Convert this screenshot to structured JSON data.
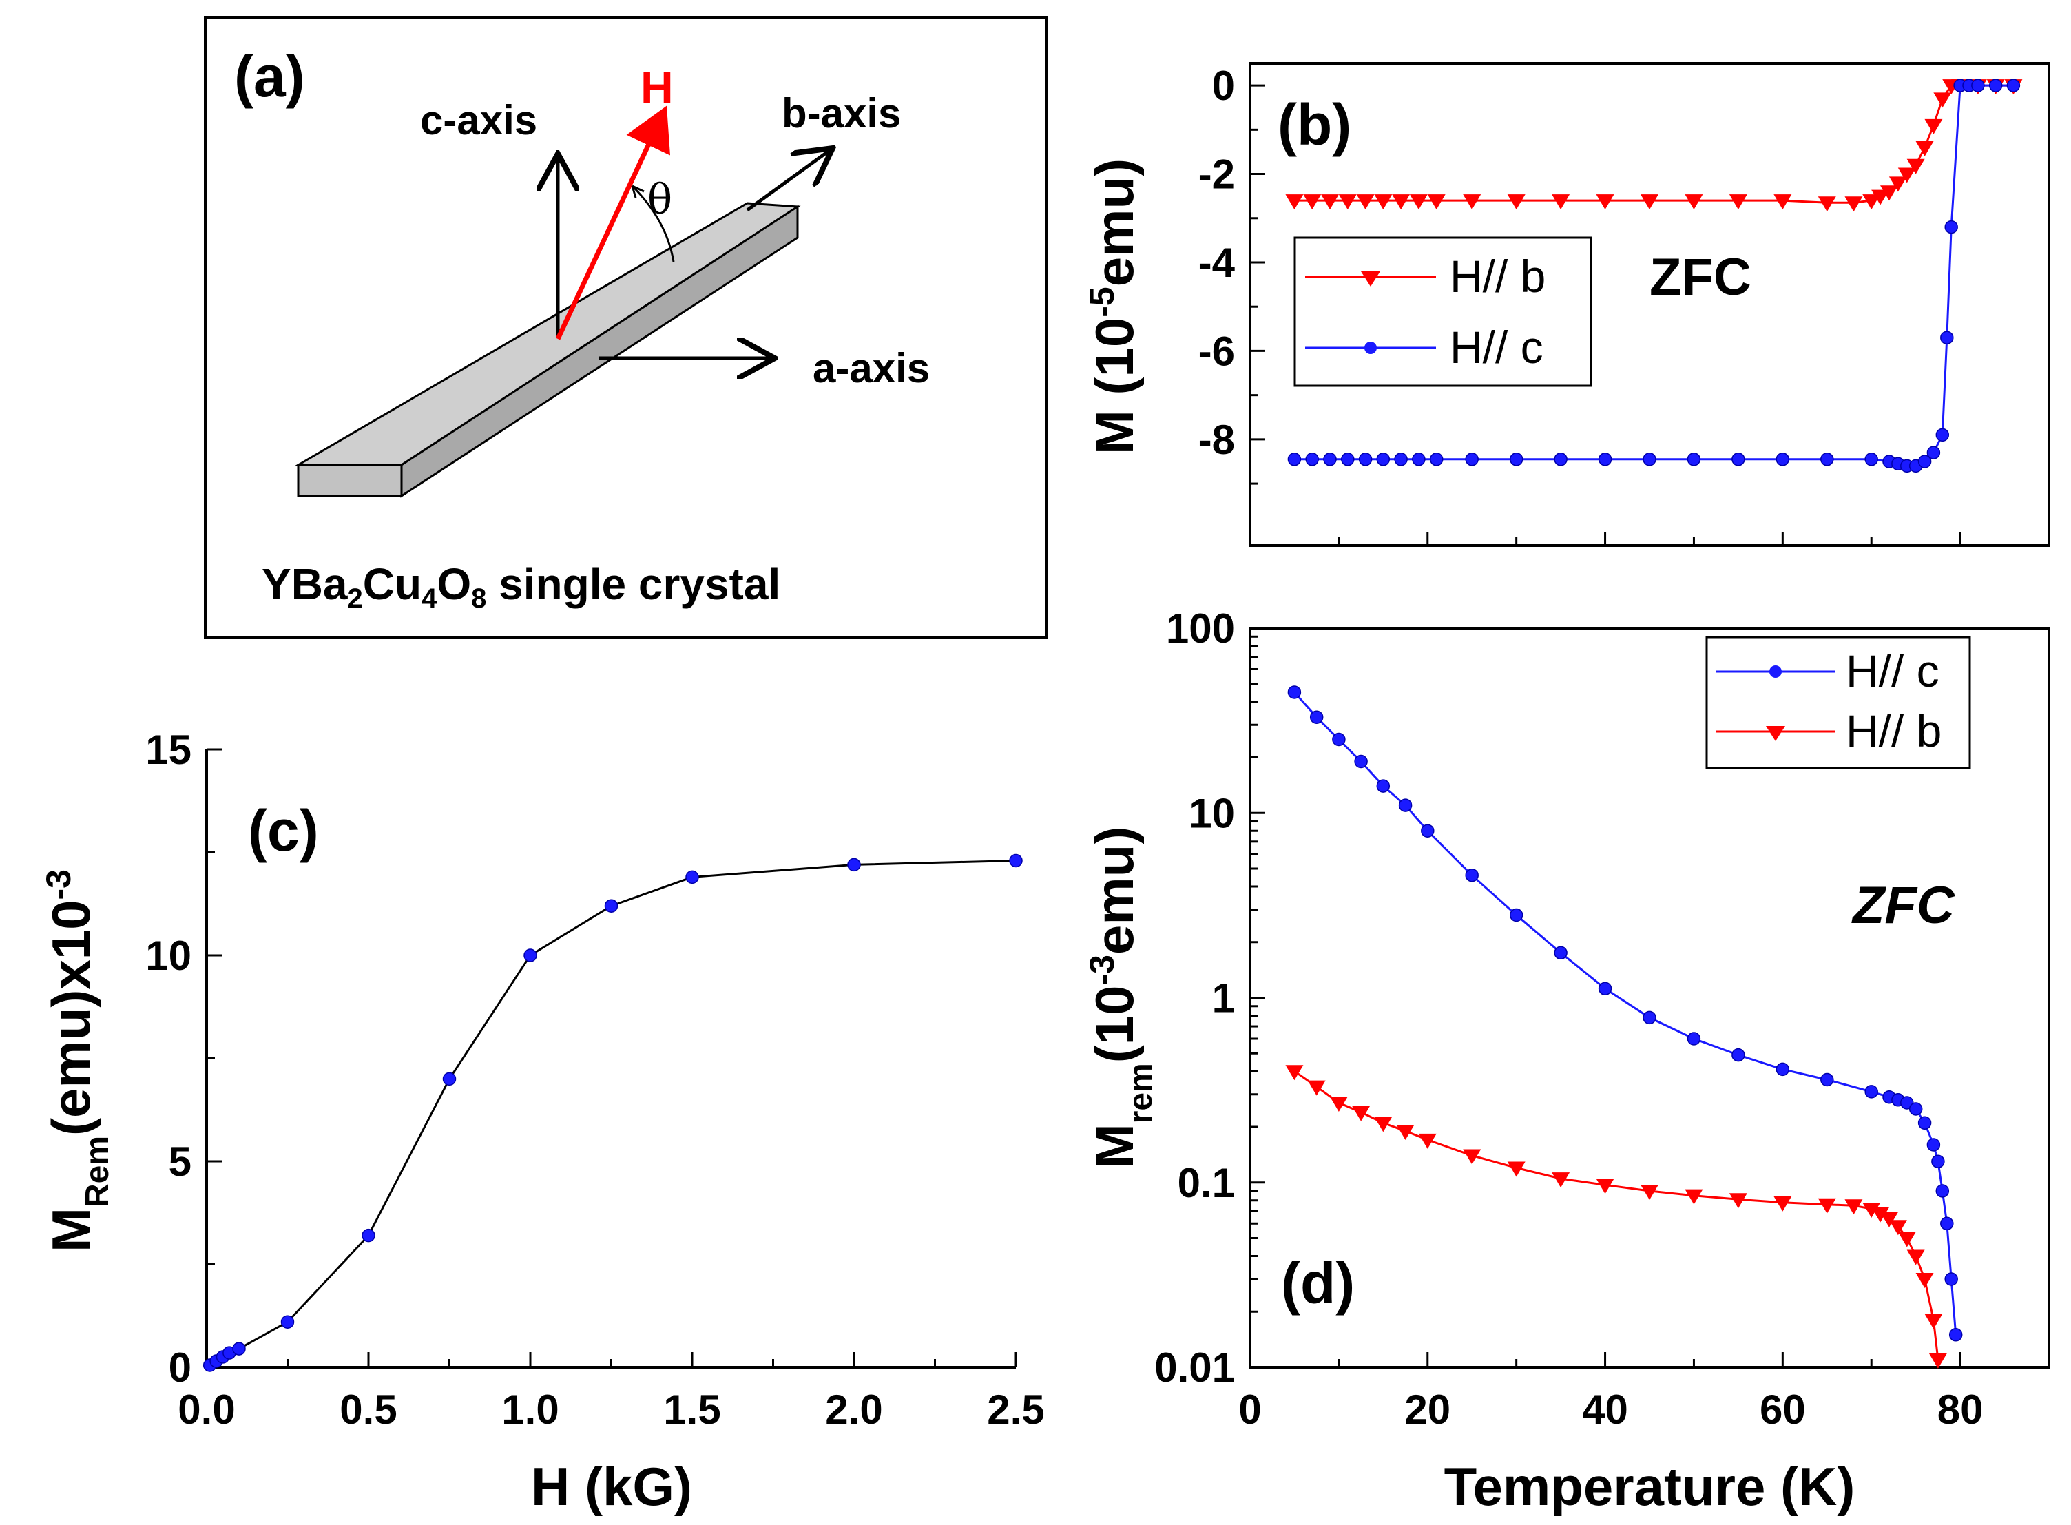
{
  "colors": {
    "red": "#ff0000",
    "blue": "#1a1aff",
    "black": "#000000",
    "slab_top": "#cfcfcf",
    "slab_side": "#a9a9a9",
    "slab_front": "#c2c2c2"
  },
  "panel_a": {
    "tag": "(a)",
    "field_label": "H",
    "c_axis": "c-axis",
    "b_axis": "b-axis",
    "a_axis": "a-axis",
    "angle": "θ",
    "caption_pre": "YBa",
    "caption_sub1": "2",
    "caption_mid": "Cu",
    "caption_sub2": "4",
    "caption_o": "O",
    "caption_sub3": "8",
    "caption_post": " single crystal"
  },
  "chart_data": [
    {
      "panel": "b",
      "type": "line",
      "tag": "(b)",
      "annotation": "ZFC",
      "ylabel_pre": "M (10",
      "ylabel_exp": "-5",
      "ylabel_post": "emu)",
      "xlim": [
        0,
        90
      ],
      "ylim": [
        -10.4,
        0.5
      ],
      "yticks": [
        0,
        -2,
        -4,
        -6,
        -8
      ],
      "ytick_labels": [
        "0",
        "-2",
        "-4",
        "-6",
        "-8"
      ],
      "series": [
        {
          "name": "H// b",
          "color": "#ff0000",
          "marker": "triangle-down",
          "x": [
            5,
            7,
            9,
            11,
            13,
            15,
            17,
            19,
            21,
            25,
            30,
            35,
            40,
            45,
            50,
            55,
            60,
            65,
            68,
            70,
            71,
            72,
            73,
            74,
            75,
            76,
            77,
            78,
            79,
            80,
            82,
            84,
            86
          ],
          "y": [
            -2.6,
            -2.6,
            -2.6,
            -2.6,
            -2.6,
            -2.6,
            -2.6,
            -2.6,
            -2.6,
            -2.6,
            -2.6,
            -2.6,
            -2.6,
            -2.6,
            -2.6,
            -2.6,
            -2.6,
            -2.65,
            -2.65,
            -2.6,
            -2.5,
            -2.4,
            -2.2,
            -2.0,
            -1.8,
            -1.4,
            -0.9,
            -0.3,
            0.0,
            0.0,
            0.0,
            0.0,
            0.0
          ]
        },
        {
          "name": "H// c",
          "color": "#1a1aff",
          "marker": "circle",
          "x": [
            5,
            7,
            9,
            11,
            13,
            15,
            17,
            19,
            21,
            25,
            30,
            35,
            40,
            45,
            50,
            55,
            60,
            65,
            70,
            72,
            73,
            74,
            75,
            76,
            77,
            78,
            78.5,
            79,
            80,
            81,
            82,
            84,
            86
          ],
          "y": [
            -8.45,
            -8.45,
            -8.45,
            -8.45,
            -8.45,
            -8.45,
            -8.45,
            -8.45,
            -8.45,
            -8.45,
            -8.45,
            -8.45,
            -8.45,
            -8.45,
            -8.45,
            -8.45,
            -8.45,
            -8.45,
            -8.45,
            -8.5,
            -8.55,
            -8.6,
            -8.6,
            -8.5,
            -8.3,
            -7.9,
            -5.7,
            -3.2,
            0.0,
            0.0,
            0.0,
            0.0,
            0.0
          ]
        }
      ]
    },
    {
      "panel": "c",
      "type": "line",
      "tag": "(c)",
      "xlabel": "H (kG)",
      "ylabel_pre": "M",
      "ylabel_sub": "Rem",
      "ylabel_post": "(emu)x10",
      "ylabel_exp": "-3",
      "xlim": [
        0,
        2.5
      ],
      "ylim": [
        0,
        15
      ],
      "xticks": [
        0,
        0.5,
        1.0,
        1.5,
        2.0,
        2.5
      ],
      "xtick_labels": [
        "0.0",
        "0.5",
        "1.0",
        "1.5",
        "2.0",
        "2.5"
      ],
      "yticks": [
        0,
        5,
        10,
        15
      ],
      "ytick_labels": [
        "0",
        "5",
        "10",
        "15"
      ],
      "series": [
        {
          "name": "M_Rem",
          "color": "#1a1aff",
          "marker": "circle",
          "x": [
            0.01,
            0.03,
            0.05,
            0.07,
            0.1,
            0.25,
            0.5,
            0.75,
            1.0,
            1.25,
            1.5,
            2.0,
            2.5
          ],
          "y": [
            0.05,
            0.15,
            0.25,
            0.35,
            0.45,
            1.1,
            3.2,
            7.0,
            10.0,
            11.2,
            11.9,
            12.2,
            12.3
          ]
        }
      ]
    },
    {
      "panel": "d",
      "type": "line",
      "tag": "(d)",
      "annotation": "ZFC",
      "xlabel": "Temperature (K)",
      "ylabel_pre": "M",
      "ylabel_sub": "rem",
      "ylabel_mid": "(10",
      "ylabel_exp": "-3",
      "ylabel_post": "emu)",
      "yscale": "log",
      "xlim": [
        0,
        90
      ],
      "ylim": [
        0.01,
        100
      ],
      "xticks": [
        0,
        20,
        40,
        60,
        80
      ],
      "xtick_labels": [
        "0",
        "20",
        "40",
        "60",
        "80"
      ],
      "yticks": [
        0.01,
        0.1,
        1,
        10,
        100
      ],
      "ytick_labels": [
        "0.01",
        "0.1",
        "1",
        "10",
        "100"
      ],
      "series": [
        {
          "name": "H// c",
          "color": "#1a1aff",
          "marker": "circle",
          "x": [
            5,
            7.5,
            10,
            12.5,
            15,
            17.5,
            20,
            25,
            30,
            35,
            40,
            45,
            50,
            55,
            60,
            65,
            70,
            72,
            73,
            74,
            75,
            76,
            77,
            77.5,
            78,
            78.5,
            79,
            79.5
          ],
          "y": [
            45,
            33,
            25,
            19,
            14,
            11,
            8,
            4.6,
            2.8,
            1.75,
            1.12,
            0.78,
            0.6,
            0.49,
            0.41,
            0.36,
            0.31,
            0.29,
            0.28,
            0.27,
            0.25,
            0.21,
            0.16,
            0.13,
            0.09,
            0.06,
            0.03,
            0.015
          ]
        },
        {
          "name": "H// b",
          "color": "#ff0000",
          "marker": "triangle-down",
          "x": [
            5,
            7.5,
            10,
            12.5,
            15,
            17.5,
            20,
            25,
            30,
            35,
            40,
            45,
            50,
            55,
            60,
            65,
            68,
            70,
            71,
            72,
            73,
            74,
            75,
            76,
            77,
            77.5
          ],
          "y": [
            0.4,
            0.33,
            0.27,
            0.24,
            0.21,
            0.19,
            0.17,
            0.14,
            0.12,
            0.105,
            0.097,
            0.09,
            0.085,
            0.081,
            0.078,
            0.076,
            0.075,
            0.072,
            0.068,
            0.064,
            0.058,
            0.05,
            0.04,
            0.03,
            0.018,
            0.011
          ]
        }
      ]
    }
  ]
}
